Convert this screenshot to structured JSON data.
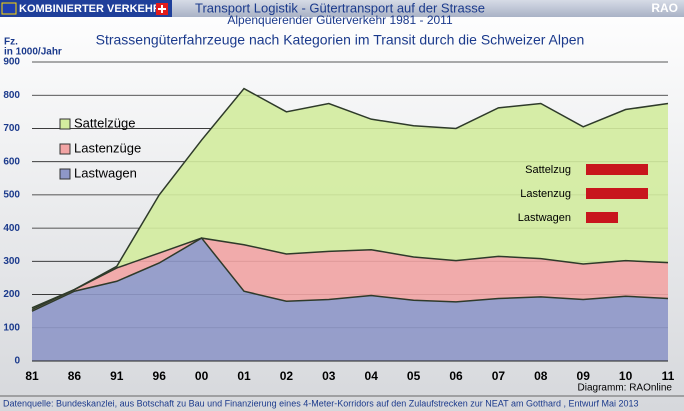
{
  "header": {
    "left": "KOMBINIERTER VERKEHR",
    "title": "Transport Logistik - Gütertransport auf der Strasse",
    "right": "RAO",
    "subtitle": "Alpenquerender Güterverkehr 1981 - 2011"
  },
  "chart_data": {
    "type": "stacked_area",
    "title": "Strassengüterfahrzeuge nach Kategorien im Transit durch die Schweizer Alpen",
    "y_label": [
      "Fz.",
      "in 1000/Jahr"
    ],
    "categories": [
      "81",
      "86",
      "91",
      "96",
      "00",
      "01",
      "02",
      "03",
      "04",
      "05",
      "06",
      "07",
      "08",
      "09",
      "10",
      "11"
    ],
    "series": [
      {
        "name": "Lastwagen",
        "color": "#8e97c8",
        "values": [
          150,
          210,
          240,
          295,
          370,
          210,
          180,
          185,
          197,
          183,
          178,
          188,
          193,
          185,
          195,
          188
        ]
      },
      {
        "name": "Lastenzüge",
        "color": "#f2a4a4",
        "values": [
          5,
          5,
          40,
          30,
          0,
          140,
          142,
          145,
          138,
          130,
          124,
          127,
          115,
          107,
          107,
          108
        ]
      },
      {
        "name": "Sattelzüge",
        "color": "#d3ec9e",
        "values": [
          5,
          0,
          5,
          175,
          295,
          470,
          428,
          445,
          393,
          395,
          398,
          447,
          467,
          413,
          455,
          479
        ]
      }
    ],
    "ylim": [
      0,
      900
    ],
    "yticks": [
      0,
      100,
      200,
      300,
      400,
      500,
      600,
      700,
      800,
      900
    ],
    "grid": true,
    "icon_labels": [
      "Sattelzug",
      "Lastenzug",
      "Lastwagen"
    ],
    "credit": "Diagramm: RAOnline"
  },
  "footer": "Datenquelle: Bundeskanzlei, aus Botschaft zu Bau und Finanzierung eines 4-Meter-Korridors auf den Zulaufstrecken zur NEAT am Gotthard , Entwurf Mai 2013"
}
